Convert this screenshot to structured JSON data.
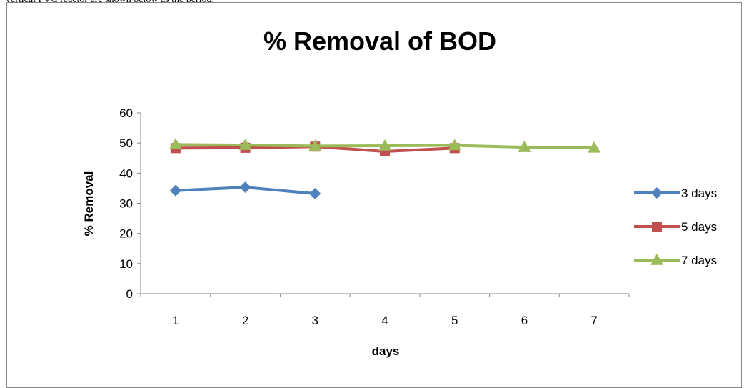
{
  "caption": "vertical PVC reactor are shown below as the period.",
  "chart_data": {
    "type": "line",
    "title": "% Removal of BOD",
    "xlabel": "days",
    "ylabel": "% Removal",
    "categories": [
      "1",
      "2",
      "3",
      "4",
      "5",
      "6",
      "7"
    ],
    "ylim": [
      0,
      60
    ],
    "yticks": [
      0,
      10,
      20,
      30,
      40,
      50,
      60
    ],
    "grid": false,
    "legend_position": "right",
    "series": [
      {
        "name": "3 days",
        "color": "#4F81BD",
        "marker": "diamond",
        "values": [
          34.2,
          35.3,
          33.2,
          null,
          null,
          null,
          null
        ]
      },
      {
        "name": "5 days",
        "color": "#C0504D",
        "marker": "square",
        "values": [
          48.3,
          48.4,
          48.8,
          47.2,
          48.3,
          null,
          null
        ]
      },
      {
        "name": "7 days",
        "color": "#9BBB59",
        "marker": "triangle",
        "values": [
          49.5,
          49.3,
          49.0,
          49.1,
          49.2,
          48.6,
          48.4
        ]
      }
    ]
  }
}
